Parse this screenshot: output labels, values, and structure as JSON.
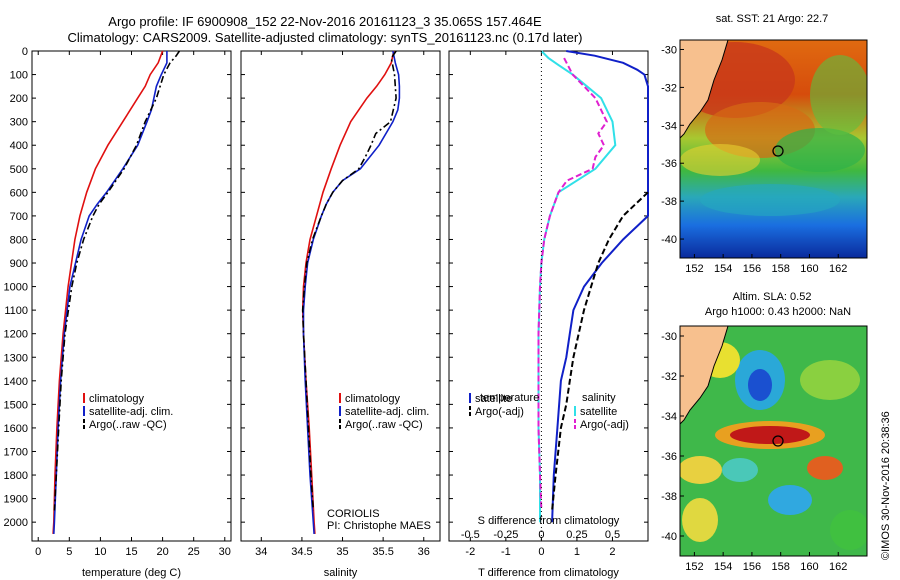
{
  "title_line1": "Argo profile: IF 6900908_152 22-Nov-2016 20161123_3 35.065S 157.464E",
  "title_line2": "Climatology: CARS2009. Satellite-adjusted climatology: synTS_20161123.nc (0.17d later)",
  "stamp": "©IMOS 30-Nov-2016 20:38:36",
  "colors": {
    "climatology": "#e01010",
    "satellite": "#1020c8",
    "argo": "#000000",
    "sal_sat": "#30e0e8",
    "sal_argo": "#e020d0",
    "land": "#f7c08e"
  },
  "chart_data": [
    {
      "type": "line",
      "xlabel": "temperature (deg C)",
      "ylabel": "",
      "xlim": [
        -1,
        31
      ],
      "ylim": [
        2080,
        0
      ],
      "xticks": [
        "0",
        "5",
        "10",
        "15",
        "20",
        "25",
        "30"
      ],
      "yticks": [
        "0",
        "100",
        "200",
        "300",
        "400",
        "500",
        "600",
        "700",
        "800",
        "900",
        "1000",
        "1100",
        "1200",
        "1300",
        "1400",
        "1500",
        "1600",
        "1700",
        "1800",
        "1900",
        "2000"
      ],
      "legend": [
        "climatology",
        "satellite-adj. clim.",
        "Argo(..raw -QC)"
      ],
      "series": [
        {
          "name": "climatology",
          "depth": [
            0,
            50,
            100,
            150,
            200,
            300,
            400,
            500,
            600,
            700,
            800,
            1000,
            1200,
            1400,
            1600,
            1800,
            2000,
            2050
          ],
          "values": [
            20.0,
            19.3,
            18.0,
            17.2,
            16.0,
            13.6,
            11.2,
            9.2,
            7.8,
            6.7,
            5.9,
            4.8,
            4.0,
            3.4,
            3.0,
            2.7,
            2.5,
            2.4
          ]
        },
        {
          "name": "satellite-adj. clim.",
          "depth": [
            0,
            50,
            100,
            150,
            200,
            250,
            300,
            400,
            500,
            600,
            650,
            700,
            800,
            1000,
            1200,
            1400,
            1600,
            1800,
            2000,
            2050
          ],
          "values": [
            20.7,
            20.7,
            19.8,
            19.0,
            18.6,
            18.2,
            17.5,
            16.0,
            13.6,
            11.0,
            9.5,
            8.2,
            6.9,
            5.1,
            4.2,
            3.6,
            3.2,
            2.9,
            2.6,
            2.5
          ]
        },
        {
          "name": "Argo(..raw -QC)",
          "depth": [
            0,
            20,
            50,
            100,
            200,
            300,
            400,
            500,
            600,
            650,
            700,
            800,
            900,
            1000,
            1200,
            1400,
            1600,
            1800,
            1950
          ],
          "values": [
            22.7,
            22.2,
            21.2,
            20.2,
            19.0,
            17.2,
            15.8,
            13.8,
            11.2,
            9.8,
            8.8,
            7.3,
            6.2,
            5.4,
            4.3,
            3.7,
            3.3,
            2.9,
            2.6
          ]
        }
      ]
    },
    {
      "type": "line",
      "xlabel": "salinity",
      "xlim": [
        33.75,
        36.2
      ],
      "ylim": [
        2080,
        0
      ],
      "xticks": [
        "34",
        "34.5",
        "35",
        "35.5",
        "36"
      ],
      "legend": [
        "climatology",
        "satellite-adj. clim.",
        "Argo(..raw -QC)"
      ],
      "annotation": [
        "CORIOLIS",
        "PI: Christophe MAES"
      ],
      "series": [
        {
          "name": "climatology",
          "depth": [
            0,
            50,
            100,
            150,
            200,
            300,
            400,
            500,
            600,
            700,
            800,
            900,
            1000,
            1100,
            1200,
            1400,
            1600,
            1800,
            2000,
            2050
          ],
          "values": [
            35.63,
            35.6,
            35.52,
            35.42,
            35.3,
            35.1,
            34.97,
            34.86,
            34.76,
            34.68,
            34.6,
            34.55,
            34.52,
            34.51,
            34.52,
            34.55,
            34.59,
            34.62,
            34.65,
            34.66
          ]
        },
        {
          "name": "satellite-adj. clim.",
          "depth": [
            0,
            50,
            100,
            150,
            200,
            250,
            300,
            400,
            500,
            550,
            600,
            650,
            700,
            800,
            900,
            1000,
            1100,
            1200,
            1400,
            1600,
            1800,
            2000,
            2050
          ],
          "values": [
            35.62,
            35.65,
            35.69,
            35.7,
            35.7,
            35.68,
            35.62,
            35.45,
            35.22,
            35.0,
            34.88,
            34.8,
            34.74,
            34.64,
            34.57,
            34.54,
            34.52,
            34.52,
            34.54,
            34.57,
            34.6,
            34.64,
            34.65
          ]
        },
        {
          "name": "Argo(..raw -QC)",
          "depth": [
            0,
            30,
            100,
            200,
            300,
            350,
            400,
            450,
            500,
            550,
            600,
            650,
            700,
            800,
            900,
            1000,
            1100,
            1200,
            1400,
            1600,
            1800,
            1950
          ],
          "values": [
            35.66,
            35.6,
            35.64,
            35.66,
            35.59,
            35.41,
            35.35,
            35.28,
            35.2,
            35.0,
            34.88,
            34.8,
            34.74,
            34.63,
            34.56,
            34.53,
            34.51,
            34.52,
            34.55,
            34.58,
            34.61,
            34.64
          ]
        }
      ]
    },
    {
      "type": "line",
      "xlabel": "T difference from climatology",
      "xlabel_top": "S difference from climatology",
      "xlim": [
        -2.6,
        3.0
      ],
      "ylim": [
        2080,
        0
      ],
      "xticks": [
        "-2",
        "-1",
        "0",
        "1",
        "2"
      ],
      "xticks_s": [
        "-0.5",
        "-0.25",
        "0",
        "0.25",
        "0.5"
      ],
      "legend_temperature": [
        "temperature",
        "satellite",
        "Argo(-adj)"
      ],
      "legend_salinity": [
        "salinity",
        "satellite",
        "Argo(-adj)"
      ],
      "series": [
        {
          "name": "temperature satellite",
          "depth": [
            0,
            20,
            50,
            80,
            100,
            150,
            200,
            300,
            400,
            500,
            600,
            700,
            800,
            900,
            1000,
            1100,
            1200,
            1300,
            1400,
            1600,
            1800,
            2000
          ],
          "values": [
            0.7,
            1.5,
            2.3,
            2.7,
            2.9,
            3.0,
            3.0,
            3.0,
            3.0,
            3.0,
            3.0,
            3.0,
            2.3,
            1.7,
            1.2,
            0.9,
            0.8,
            0.7,
            0.55,
            0.45,
            0.35,
            0.3
          ]
        },
        {
          "name": "temperature Argo(-adj)",
          "depth": [
            600,
            700,
            800,
            900,
            1000,
            1100,
            1200,
            1300,
            1400,
            1500,
            1600,
            1800,
            1950
          ],
          "values": [
            3.0,
            2.3,
            1.9,
            1.6,
            1.4,
            1.2,
            1.05,
            0.9,
            0.8,
            0.7,
            0.55,
            0.4,
            0.3
          ]
        },
        {
          "name": "salinity satellite",
          "depth": [
            0,
            30,
            60,
            100,
            150,
            200,
            300,
            400,
            500,
            600,
            700,
            800,
            900,
            1000,
            1200,
            1400,
            1600,
            1800,
            2000
          ],
          "values": [
            0.0,
            0.05,
            0.12,
            0.22,
            0.32,
            0.42,
            0.5,
            0.52,
            0.38,
            0.12,
            0.06,
            0.02,
            0.0,
            -0.01,
            -0.02,
            -0.02,
            -0.02,
            -0.01,
            -0.01
          ]
        },
        {
          "name": "salinity Argo(-adj)",
          "depth": [
            30,
            100,
            200,
            300,
            350,
            400,
            450,
            500,
            550,
            600,
            700,
            800,
            900,
            1000,
            1200,
            1400,
            1600,
            1800,
            1950
          ],
          "values": [
            0.16,
            0.22,
            0.38,
            0.46,
            0.4,
            0.44,
            0.38,
            0.36,
            0.18,
            0.12,
            0.06,
            0.02,
            0.0,
            -0.01,
            -0.02,
            -0.02,
            -0.02,
            -0.01,
            0.0
          ]
        }
      ]
    },
    {
      "type": "heatmap",
      "title": "sat. SST: 21 Argo: 22.7",
      "xticks": [
        "152",
        "154",
        "156",
        "158",
        "160",
        "162"
      ],
      "yticks": [
        "-30",
        "-32",
        "-34",
        "-36",
        "-38",
        "-40"
      ],
      "xlim": [
        151,
        164
      ],
      "ylim": [
        -41,
        -29.5
      ],
      "float_position": [
        157.464,
        -35.065
      ]
    },
    {
      "type": "heatmap",
      "title_line1": "Altim. SLA: 0.52",
      "title_line2": "Argo h1000: 0.43 h2000: NaN",
      "xticks": [
        "152",
        "154",
        "156",
        "158",
        "160",
        "162"
      ],
      "yticks": [
        "-30",
        "-32",
        "-34",
        "-36",
        "-38",
        "-40"
      ],
      "xlim": [
        151,
        164
      ],
      "ylim": [
        -41,
        -29.5
      ],
      "float_position": [
        157.464,
        -35.065
      ]
    }
  ]
}
